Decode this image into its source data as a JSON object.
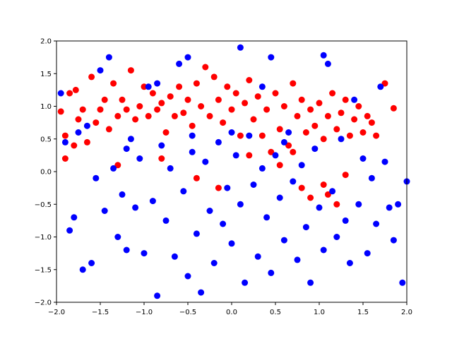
{
  "chart_data": {
    "type": "scatter",
    "title": "",
    "xlabel": "",
    "ylabel": "",
    "xlim": [
      -2.0,
      2.0
    ],
    "ylim": [
      -2.0,
      2.0
    ],
    "x_ticks": [
      -2.0,
      -1.5,
      -1.0,
      -0.5,
      0.0,
      0.5,
      1.0,
      1.5,
      2.0
    ],
    "y_ticks": [
      -2.0,
      -1.5,
      -1.0,
      -0.5,
      0.0,
      0.5,
      1.0,
      1.5,
      2.0
    ],
    "x_tick_labels": [
      "−2.0",
      "−1.5",
      "−1.0",
      "−0.5",
      "0.0",
      "0.5",
      "1.0",
      "1.5",
      "2.0"
    ],
    "y_tick_labels": [
      "−2.0",
      "−1.5",
      "−1.0",
      "−0.5",
      "0.0",
      "0.5",
      "1.0",
      "1.5",
      "2.0"
    ],
    "grid": false,
    "legend": "none",
    "series": [
      {
        "color": "#ff0000",
        "points": [
          [
            -1.95,
            0.92
          ],
          [
            -1.9,
            0.55
          ],
          [
            -1.85,
            1.2
          ],
          [
            -1.8,
            0.4
          ],
          [
            -1.78,
            1.25
          ],
          [
            -1.75,
            0.8
          ],
          [
            -1.7,
            0.95
          ],
          [
            -1.65,
            0.45
          ],
          [
            -1.6,
            1.45
          ],
          [
            -1.55,
            0.75
          ],
          [
            -1.5,
            0.95
          ],
          [
            -1.45,
            1.1
          ],
          [
            -1.4,
            0.65
          ],
          [
            -1.35,
            1.35
          ],
          [
            -1.3,
            0.85
          ],
          [
            -1.25,
            1.1
          ],
          [
            -1.2,
            0.95
          ],
          [
            -1.15,
            1.55
          ],
          [
            -1.1,
            0.8
          ],
          [
            -1.05,
            1.0
          ],
          [
            -1.0,
            1.3
          ],
          [
            -0.95,
            0.85
          ],
          [
            -0.9,
            1.2
          ],
          [
            -0.85,
            0.95
          ],
          [
            -0.8,
            1.05
          ],
          [
            -0.75,
            0.6
          ],
          [
            -0.7,
            1.15
          ],
          [
            -0.65,
            0.85
          ],
          [
            -0.6,
            1.3
          ],
          [
            -0.55,
            0.9
          ],
          [
            -0.5,
            1.1
          ],
          [
            -0.45,
            0.7
          ],
          [
            -0.4,
            1.35
          ],
          [
            -0.35,
            1.0
          ],
          [
            -0.3,
            1.6
          ],
          [
            -0.25,
            0.85
          ],
          [
            -0.2,
            1.45
          ],
          [
            -0.15,
            1.1
          ],
          [
            -0.1,
            0.75
          ],
          [
            -0.05,
            1.3
          ],
          [
            0.0,
            0.95
          ],
          [
            0.05,
            1.2
          ],
          [
            0.1,
            0.55
          ],
          [
            0.15,
            1.05
          ],
          [
            0.2,
            1.4
          ],
          [
            0.25,
            0.8
          ],
          [
            0.3,
            1.15
          ],
          [
            0.35,
            0.55
          ],
          [
            0.4,
            0.95
          ],
          [
            0.45,
            0.3
          ],
          [
            0.5,
            1.2
          ],
          [
            0.55,
            0.65
          ],
          [
            0.6,
            1.0
          ],
          [
            0.65,
            0.4
          ],
          [
            0.7,
            1.35
          ],
          [
            0.75,
            0.85
          ],
          [
            0.8,
            1.1
          ],
          [
            0.85,
            0.6
          ],
          [
            0.9,
            0.95
          ],
          [
            0.95,
            0.7
          ],
          [
            1.0,
            1.05
          ],
          [
            1.05,
            0.5
          ],
          [
            1.1,
            0.85
          ],
          [
            1.15,
            1.2
          ],
          [
            1.2,
            0.65
          ],
          [
            1.25,
            0.9
          ],
          [
            1.3,
            1.1
          ],
          [
            1.35,
            0.55
          ],
          [
            1.4,
            0.8
          ],
          [
            1.45,
            1.0
          ],
          [
            1.5,
            0.6
          ],
          [
            1.55,
            0.85
          ],
          [
            1.6,
            0.75
          ],
          [
            1.65,
            0.55
          ],
          [
            1.75,
            1.35
          ],
          [
            1.85,
            0.97
          ],
          [
            -1.3,
            0.1
          ],
          [
            -0.8,
            0.2
          ],
          [
            -0.4,
            -0.1
          ],
          [
            -0.15,
            -0.25
          ],
          [
            0.2,
            0.25
          ],
          [
            0.55,
            0.1
          ],
          [
            0.8,
            -0.25
          ],
          [
            0.9,
            -0.4
          ],
          [
            1.05,
            -0.2
          ],
          [
            1.1,
            -0.35
          ],
          [
            1.2,
            -0.5
          ],
          [
            1.3,
            -0.05
          ],
          [
            0.7,
            0.3
          ],
          [
            -1.9,
            0.2
          ]
        ]
      },
      {
        "color": "#0000ff",
        "points": [
          [
            -1.95,
            1.2
          ],
          [
            -1.9,
            0.45
          ],
          [
            -1.85,
            -0.9
          ],
          [
            -1.8,
            -0.7
          ],
          [
            -1.75,
            0.6
          ],
          [
            -1.7,
            -1.5
          ],
          [
            -1.65,
            0.7
          ],
          [
            -1.6,
            -1.4
          ],
          [
            -1.55,
            -0.1
          ],
          [
            -1.5,
            1.55
          ],
          [
            -1.45,
            -0.6
          ],
          [
            -1.4,
            1.75
          ],
          [
            -1.35,
            0.05
          ],
          [
            -1.3,
            -1.0
          ],
          [
            -1.25,
            -0.35
          ],
          [
            -1.2,
            -1.2
          ],
          [
            -1.15,
            0.5
          ],
          [
            -1.1,
            -0.55
          ],
          [
            -1.05,
            0.2
          ],
          [
            -1.0,
            -1.25
          ],
          [
            -0.95,
            1.3
          ],
          [
            -0.9,
            -0.45
          ],
          [
            -0.85,
            -1.9
          ],
          [
            -0.8,
            0.4
          ],
          [
            -0.75,
            -0.75
          ],
          [
            -0.7,
            0.05
          ],
          [
            -0.65,
            -1.3
          ],
          [
            -0.6,
            1.65
          ],
          [
            -0.55,
            -0.3
          ],
          [
            -0.5,
            -1.6
          ],
          [
            -0.45,
            0.3
          ],
          [
            -0.4,
            -0.95
          ],
          [
            -0.35,
            -1.85
          ],
          [
            -0.3,
            0.15
          ],
          [
            -0.25,
            -0.6
          ],
          [
            -0.2,
            -1.4
          ],
          [
            -0.15,
            0.45
          ],
          [
            -0.1,
            -0.8
          ],
          [
            -0.05,
            -0.25
          ],
          [
            0.0,
            -1.1
          ],
          [
            0.05,
            0.25
          ],
          [
            0.1,
            -0.5
          ],
          [
            0.15,
            -1.7
          ],
          [
            0.2,
            0.55
          ],
          [
            0.25,
            -0.2
          ],
          [
            0.3,
            -1.3
          ],
          [
            0.35,
            0.05
          ],
          [
            0.4,
            -0.7
          ],
          [
            0.45,
            -1.55
          ],
          [
            0.5,
            0.25
          ],
          [
            0.55,
            -0.4
          ],
          [
            0.6,
            -1.05
          ],
          [
            0.65,
            0.6
          ],
          [
            0.7,
            -0.15
          ],
          [
            0.75,
            -1.35
          ],
          [
            0.8,
            0.1
          ],
          [
            0.85,
            -0.85
          ],
          [
            0.9,
            -1.7
          ],
          [
            0.95,
            0.35
          ],
          [
            1.0,
            -0.55
          ],
          [
            1.05,
            -1.2
          ],
          [
            1.1,
            1.65
          ],
          [
            1.15,
            -0.3
          ],
          [
            1.2,
            -1.0
          ],
          [
            1.25,
            0.5
          ],
          [
            1.3,
            -0.75
          ],
          [
            1.35,
            -1.4
          ],
          [
            1.4,
            1.1
          ],
          [
            1.45,
            -0.5
          ],
          [
            1.5,
            0.2
          ],
          [
            1.55,
            -1.25
          ],
          [
            1.6,
            -0.1
          ],
          [
            1.65,
            -0.8
          ],
          [
            1.7,
            1.3
          ],
          [
            1.75,
            0.15
          ],
          [
            1.8,
            -0.55
          ],
          [
            1.85,
            -1.05
          ],
          [
            1.9,
            -0.5
          ],
          [
            1.95,
            -1.7
          ],
          [
            2.0,
            -0.15
          ],
          [
            -0.5,
            1.75
          ],
          [
            0.1,
            1.9
          ],
          [
            0.45,
            1.75
          ],
          [
            1.05,
            1.78
          ],
          [
            -0.85,
            1.35
          ],
          [
            0.35,
            1.3
          ],
          [
            -0.45,
            0.55
          ],
          [
            0.0,
            0.6
          ],
          [
            0.6,
            0.45
          ],
          [
            -1.2,
            0.35
          ]
        ]
      }
    ]
  }
}
